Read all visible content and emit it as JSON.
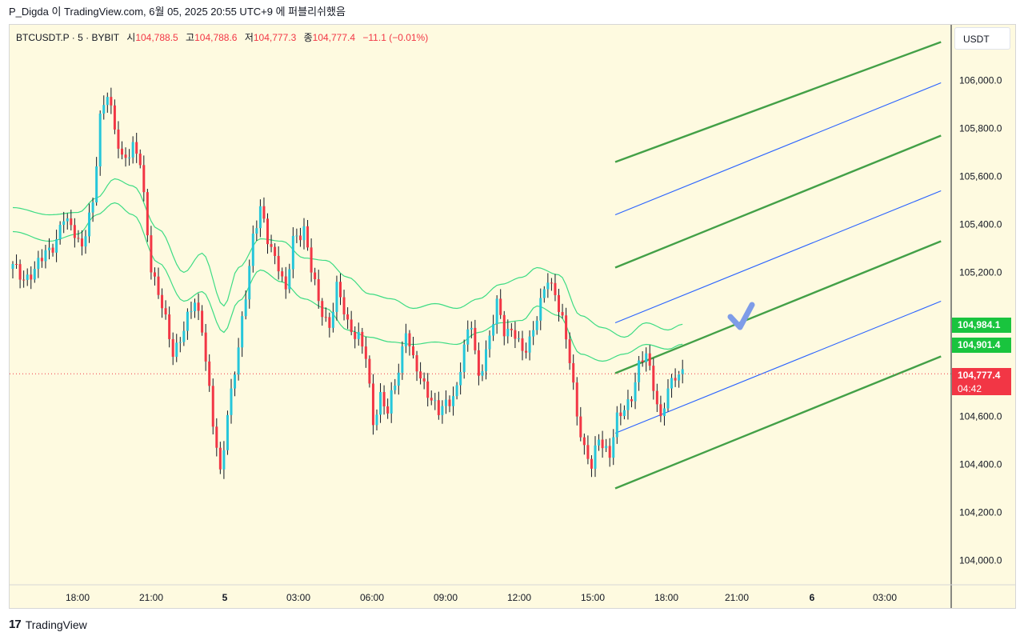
{
  "publication": {
    "text": "P_Digda 이 TradingView.com, 6월 05, 2025 20:55 UTC+9 에 퍼블리쉬했음"
  },
  "legend": {
    "symbol": "BTCUSDT.P · 5 · BYBIT",
    "open_label": "시",
    "open_value": "104,788.5",
    "high_label": "고",
    "high_value": "104,788.6",
    "low_label": "저",
    "low_value": "104,777.3",
    "close_label": "종",
    "close_value": "104,777.4",
    "change": "−11.1 (−0.01%)"
  },
  "currency_button": "USDT",
  "price_axis": {
    "labels": [
      "106,000.0",
      "105,800.0",
      "105,600.0",
      "105,400.0",
      "105,200.0",
      "104,600.0",
      "104,400.0",
      "104,200.0",
      "104,000.0"
    ],
    "label_values": [
      106000,
      105800,
      105600,
      105400,
      105200,
      104600,
      104400,
      104200,
      104000
    ]
  },
  "price_tags": {
    "upper_band": "104,984.1",
    "middle_band": "104,901.4",
    "last_price": "104,777.4",
    "countdown": "04:42"
  },
  "time_axis": {
    "labels": [
      "18:00",
      "21:00",
      "5",
      "03:00",
      "06:00",
      "09:00",
      "12:00",
      "15:00",
      "18:00",
      "21:00",
      "6",
      "03:00"
    ],
    "bold": [
      false,
      false,
      true,
      false,
      false,
      false,
      false,
      false,
      false,
      false,
      true,
      false
    ]
  },
  "footer": {
    "brand": "TradingView"
  },
  "colors": {
    "background": "#fefae0",
    "candle_up": "#26c6da",
    "candle_down": "#f23645",
    "candle_wick": "#131722",
    "channel_green": "#43a047",
    "channel_blue": "#2962ff",
    "bands": "#3ddc84",
    "last_price_line": "#f23645",
    "checkmark": "#7e9ce8"
  },
  "chart_data": {
    "type": "candlestick",
    "symbol": "BTCUSDT.P",
    "timeframe": "5",
    "exchange": "BYBIT",
    "last_price": 104777.4,
    "y_range": [
      103960,
      106160
    ],
    "price_path": [
      [
        0,
        105220
      ],
      [
        3,
        105180
      ],
      [
        6,
        105200
      ],
      [
        9,
        105290
      ],
      [
        12,
        105330
      ],
      [
        14,
        105420
      ],
      [
        17,
        105380
      ],
      [
        19,
        105300
      ],
      [
        22,
        105480
      ],
      [
        24,
        105860
      ],
      [
        26,
        105950
      ],
      [
        28,
        105780
      ],
      [
        30,
        105680
      ],
      [
        33,
        105720
      ],
      [
        35,
        105650
      ],
      [
        38,
        105230
      ],
      [
        41,
        105050
      ],
      [
        44,
        104870
      ],
      [
        47,
        104960
      ],
      [
        50,
        105080
      ],
      [
        52,
        104980
      ],
      [
        55,
        104560
      ],
      [
        57,
        104360
      ],
      [
        59,
        104620
      ],
      [
        62,
        104870
      ],
      [
        64,
        105110
      ],
      [
        66,
        105360
      ],
      [
        68,
        105460
      ],
      [
        70,
        105330
      ],
      [
        73,
        105240
      ],
      [
        75,
        105110
      ],
      [
        77,
        105330
      ],
      [
        80,
        105390
      ],
      [
        82,
        105210
      ],
      [
        84,
        105070
      ],
      [
        87,
        104980
      ],
      [
        89,
        105130
      ],
      [
        92,
        104990
      ],
      [
        95,
        104930
      ],
      [
        97,
        104840
      ],
      [
        99,
        104580
      ],
      [
        101,
        104690
      ],
      [
        103,
        104610
      ],
      [
        106,
        104800
      ],
      [
        108,
        104970
      ],
      [
        110,
        104820
      ],
      [
        112,
        104760
      ],
      [
        114,
        104710
      ],
      [
        117,
        104610
      ],
      [
        119,
        104650
      ],
      [
        122,
        104720
      ],
      [
        124,
        104880
      ],
      [
        126,
        104990
      ],
      [
        128,
        104770
      ],
      [
        131,
        104910
      ],
      [
        133,
        105080
      ],
      [
        135,
        104970
      ],
      [
        138,
        104930
      ],
      [
        140,
        104870
      ],
      [
        143,
        104960
      ],
      [
        145,
        105060
      ],
      [
        147,
        105180
      ],
      [
        149,
        105120
      ],
      [
        151,
        104990
      ],
      [
        153,
        104830
      ],
      [
        155,
        104620
      ],
      [
        157,
        104460
      ],
      [
        159,
        104380
      ],
      [
        161,
        104520
      ],
      [
        164,
        104440
      ],
      [
        166,
        104580
      ],
      [
        168,
        104640
      ],
      [
        170,
        104690
      ],
      [
        172,
        104800
      ],
      [
        174,
        104860
      ],
      [
        176,
        104740
      ],
      [
        178,
        104580
      ],
      [
        180,
        104700
      ],
      [
        182,
        104780
      ],
      [
        184,
        104790
      ]
    ],
    "bands": {
      "upper": [
        [
          0,
          105470
        ],
        [
          10,
          105440
        ],
        [
          18,
          105450
        ],
        [
          23,
          105510
        ],
        [
          28,
          105590
        ],
        [
          33,
          105560
        ],
        [
          40,
          105380
        ],
        [
          47,
          105200
        ],
        [
          52,
          105280
        ],
        [
          58,
          105060
        ],
        [
          62,
          105220
        ],
        [
          68,
          105340
        ],
        [
          74,
          105330
        ],
        [
          80,
          105260
        ],
        [
          86,
          105250
        ],
        [
          92,
          105180
        ],
        [
          98,
          105110
        ],
        [
          104,
          105090
        ],
        [
          110,
          105050
        ],
        [
          116,
          105070
        ],
        [
          122,
          105050
        ],
        [
          128,
          105090
        ],
        [
          134,
          105150
        ],
        [
          140,
          105180
        ],
        [
          144,
          105220
        ],
        [
          150,
          105190
        ],
        [
          156,
          105020
        ],
        [
          162,
          104970
        ],
        [
          168,
          104930
        ],
        [
          174,
          104990
        ],
        [
          180,
          104960
        ],
        [
          184,
          104984
        ]
      ],
      "middle": [
        [
          0,
          105370
        ],
        [
          10,
          105330
        ],
        [
          18,
          105360
        ],
        [
          23,
          105440
        ],
        [
          28,
          105490
        ],
        [
          33,
          105440
        ],
        [
          40,
          105240
        ],
        [
          47,
          105080
        ],
        [
          52,
          105120
        ],
        [
          58,
          104950
        ],
        [
          62,
          105080
        ],
        [
          68,
          105210
        ],
        [
          74,
          105160
        ],
        [
          80,
          105090
        ],
        [
          86,
          105050
        ],
        [
          92,
          104960
        ],
        [
          98,
          104930
        ],
        [
          104,
          104910
        ],
        [
          110,
          104900
        ],
        [
          116,
          104910
        ],
        [
          122,
          104900
        ],
        [
          128,
          104950
        ],
        [
          134,
          104990
        ],
        [
          140,
          105000
        ],
        [
          144,
          105060
        ],
        [
          150,
          105020
        ],
        [
          156,
          104860
        ],
        [
          162,
          104830
        ],
        [
          168,
          104860
        ],
        [
          174,
          104900
        ],
        [
          180,
          104880
        ],
        [
          184,
          104901
        ]
      ]
    },
    "channel": {
      "green_lines": [
        [
          [
            165.5,
            105660
          ],
          [
            255,
            106160
          ]
        ],
        [
          [
            165.5,
            105220
          ],
          [
            255,
            105770
          ]
        ],
        [
          [
            165.5,
            104780
          ],
          [
            255,
            105330
          ]
        ],
        [
          [
            165.5,
            104300
          ],
          [
            255,
            104850
          ]
        ]
      ],
      "blue_lines": [
        [
          [
            165.5,
            105440
          ],
          [
            255,
            105990
          ]
        ],
        [
          [
            165.5,
            104990
          ],
          [
            255,
            105540
          ]
        ],
        [
          [
            165.5,
            104530
          ],
          [
            255,
            105080
          ]
        ]
      ]
    },
    "time_labels": [
      "18:00",
      "21:00",
      "5",
      "03:00",
      "06:00",
      "09:00",
      "12:00",
      "15:00",
      "18:00",
      "21:00",
      "6",
      "03:00"
    ]
  }
}
